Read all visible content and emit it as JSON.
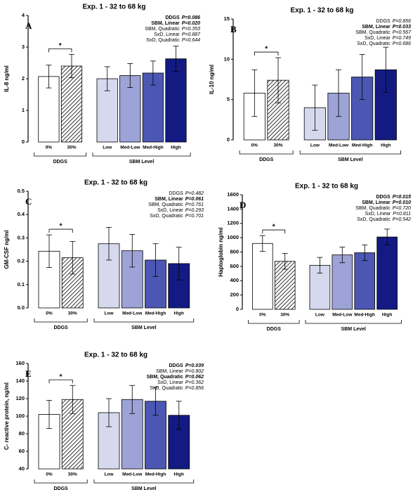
{
  "chart_data": [
    {
      "type": "bar",
      "panel": "A",
      "title": "Exp. 1 - 32 to 68 kg",
      "ylabel": "IL-8 ng/ml",
      "ylim": [
        0,
        4
      ],
      "yticks": [
        0,
        1,
        2,
        3,
        4
      ],
      "stats": [
        {
          "label": "DDGS",
          "p": "P=0.086",
          "bold": true
        },
        {
          "label": "SBM, Linear",
          "p": "P=0.020",
          "bold": true
        },
        {
          "label": "SBM, Quadratic",
          "p": "P=0.353",
          "bold": false
        },
        {
          "label": "SxD, Linear",
          "p": "P=0.887",
          "bold": false
        },
        {
          "label": "SxD, Quadratic",
          "p": "P=0.644",
          "bold": false
        }
      ],
      "groups": [
        {
          "name": "DDGS",
          "annotation": "*",
          "categories": [
            "0%",
            "30%"
          ],
          "values": [
            2.07,
            2.4
          ],
          "errors": [
            0.36,
            0.37
          ],
          "colors": [
            "#ffffff",
            "hatch"
          ]
        },
        {
          "name": "SBM Level",
          "categories": [
            "Low",
            "Med-Low",
            "Med-High",
            "High"
          ],
          "values": [
            2.0,
            2.1,
            2.18,
            2.63
          ],
          "errors": [
            0.38,
            0.38,
            0.38,
            0.4
          ],
          "colors": [
            "#d6d9ee",
            "#9da3d6",
            "#4b57b2",
            "#131b82"
          ]
        }
      ]
    },
    {
      "type": "bar",
      "panel": "B",
      "title": "Exp. 1 - 32 to 68 kg",
      "ylabel": "IL-10 ng/ml",
      "ylim": [
        0,
        15
      ],
      "yticks": [
        0,
        5,
        10,
        15
      ],
      "stats": [
        {
          "label": "DDGS",
          "p": "P=0.856",
          "bold": false
        },
        {
          "label": "SBM, Linear",
          "p": "P=0.033",
          "bold": true
        },
        {
          "label": "SBM, Quadratic",
          "p": "P=0.567",
          "bold": false
        },
        {
          "label": "SxD, Linear",
          "p": "P=0.749",
          "bold": false
        },
        {
          "label": "SxD, Quadratic",
          "p": "P=0.686",
          "bold": false
        }
      ],
      "groups": [
        {
          "name": "DDGS",
          "annotation": "*",
          "categories": [
            "0%",
            "30%"
          ],
          "values": [
            5.8,
            7.4
          ],
          "errors": [
            2.9,
            2.8
          ],
          "colors": [
            "#ffffff",
            "hatch"
          ]
        },
        {
          "name": "SBM Level",
          "categories": [
            "Low",
            "Med-Low",
            "Med-High",
            "High"
          ],
          "values": [
            4.0,
            5.8,
            7.8,
            8.7
          ],
          "errors": [
            2.8,
            2.9,
            2.8,
            2.8
          ],
          "colors": [
            "#d6d9ee",
            "#9da3d6",
            "#4b57b2",
            "#131b82"
          ]
        }
      ]
    },
    {
      "type": "bar",
      "panel": "C",
      "title": "Exp. 1 - 32 to 68 kg",
      "ylabel": "GM-CSF ng/ml",
      "ylim": [
        0,
        0.5
      ],
      "yticks": [
        {
          "value": 0,
          "label": "0.0"
        },
        0.1,
        0.2,
        0.3,
        0.4,
        0.5
      ],
      "stats": [
        {
          "label": "DDGS",
          "p": "P=0.482",
          "bold": false
        },
        {
          "label": "SBM, Linear",
          "p": "P=0.061",
          "bold": true
        },
        {
          "label": "SBM, Quadratic",
          "p": "P=0.761",
          "bold": false
        },
        {
          "label": "SxD, Linear",
          "p": "P=0.293",
          "bold": false
        },
        {
          "label": "SxD, Quadratic",
          "p": "P=0.701",
          "bold": false
        }
      ],
      "groups": [
        {
          "name": "DDGS",
          "annotation": "*",
          "categories": [
            "0%",
            "30%"
          ],
          "values": [
            0.243,
            0.215
          ],
          "errors": [
            0.07,
            0.07
          ],
          "colors": [
            "#ffffff",
            "hatch"
          ]
        },
        {
          "name": "SBM Level",
          "categories": [
            "Low",
            "Med-Low",
            "Med-High",
            "High"
          ],
          "values": [
            0.275,
            0.245,
            0.205,
            0.19
          ],
          "errors": [
            0.07,
            0.07,
            0.07,
            0.07
          ],
          "colors": [
            "#d6d9ee",
            "#9da3d6",
            "#4b57b2",
            "#131b82"
          ]
        }
      ]
    },
    {
      "type": "bar",
      "panel": "D",
      "title": "Exp. 1 - 32 to 68 kg",
      "ylabel": "Haptoglobin ng/ml",
      "ylim": [
        0,
        1600
      ],
      "yticks": [
        0,
        200,
        400,
        600,
        800,
        1000,
        1200,
        1400,
        1600
      ],
      "stats": [
        {
          "label": "DDGS",
          "p": "P=0.015",
          "bold": true
        },
        {
          "label": "SBM, Linear",
          "p": "P=0.010",
          "bold": true
        },
        {
          "label": "SBM, Quadratic",
          "p": "P=0.720",
          "bold": false
        },
        {
          "label": "SxD, Linear",
          "p": "P=0.811",
          "bold": false
        },
        {
          "label": "SxD, Quadratic",
          "p": "P=0.542",
          "bold": false
        }
      ],
      "groups": [
        {
          "name": "DDGS",
          "annotation": "*",
          "categories": [
            "0%",
            "30%"
          ],
          "values": [
            920,
            670
          ],
          "errors": [
            110,
            110
          ],
          "colors": [
            "#ffffff",
            "hatch"
          ]
        },
        {
          "name": "SBM Level",
          "categories": [
            "Low",
            "Med-Low",
            "Med-High",
            "High"
          ],
          "values": [
            615,
            760,
            790,
            1010
          ],
          "errors": [
            110,
            110,
            110,
            110
          ],
          "colors": [
            "#d6d9ee",
            "#9da3d6",
            "#4b57b2",
            "#131b82"
          ]
        }
      ]
    },
    {
      "type": "bar",
      "panel": "E",
      "title": "Exp. 1 - 32 to 68 kg",
      "ylabel": "C- reactive protein, ng/ml",
      "ylim": [
        40,
        160
      ],
      "yticks": [
        40,
        60,
        80,
        100,
        120,
        140,
        160
      ],
      "stats": [
        {
          "label": "DDGS",
          "p": "P=0.039",
          "bold": true
        },
        {
          "label": "SBM, Linear",
          "p": "P=0.802",
          "bold": false
        },
        {
          "label": "SBM, Quadratic",
          "p": "P=0.062",
          "bold": true
        },
        {
          "label": "SxD, Linear",
          "p": "P=0.362",
          "bold": false
        },
        {
          "label": "SxD, Quadratic",
          "p": "P=0.856",
          "bold": false
        }
      ],
      "groups": [
        {
          "name": "DDGS",
          "annotation": "*",
          "categories": [
            "0%",
            "30%"
          ],
          "values": [
            102,
            119
          ],
          "errors": [
            16,
            16
          ],
          "colors": [
            "#ffffff",
            "hatch"
          ]
        },
        {
          "name": "SBM Level",
          "categories": [
            "Low",
            "Med-Low",
            "Med-High",
            "High"
          ],
          "values": [
            104,
            119,
            117,
            101
          ],
          "errors": [
            16,
            16,
            16,
            16
          ],
          "colors": [
            "#d6d9ee",
            "#9da3d6",
            "#4b57b2",
            "#131b82"
          ]
        }
      ]
    }
  ]
}
